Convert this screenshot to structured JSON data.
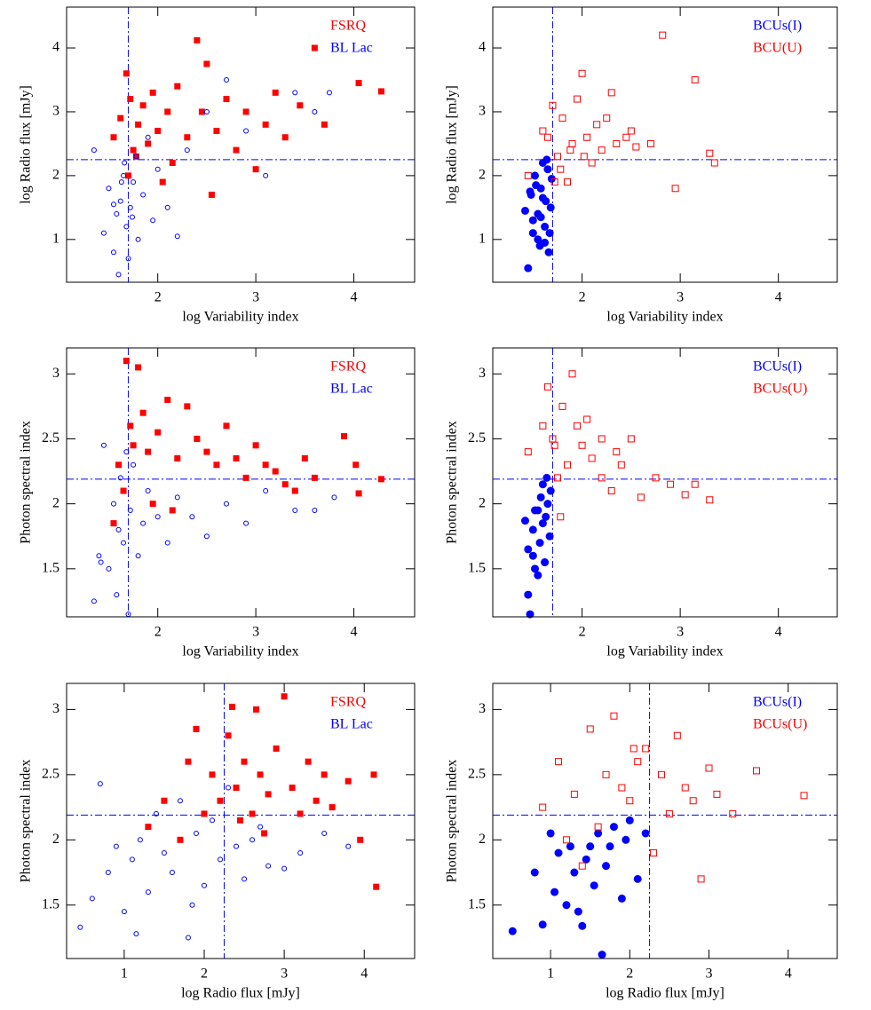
{
  "chart_data": [
    {
      "type": "scatter",
      "xlabel": "log Variability index",
      "ylabel": "log Radio flux [mJy]",
      "xlim": [
        1.07,
        4.62
      ],
      "ylim": [
        0.33,
        4.64
      ],
      "xticks": [
        2,
        3,
        4
      ],
      "yticks": [
        1,
        2,
        3,
        4
      ],
      "vline": 1.7,
      "hline": 2.25,
      "legend": "upper right",
      "series": [
        {
          "name": "FSRQ",
          "color": "#ff0000",
          "marker": "filled-square",
          "x": [
            1.55,
            1.62,
            1.68,
            1.72,
            1.75,
            1.8,
            1.85,
            1.9,
            1.95,
            2.0,
            2.05,
            2.1,
            2.2,
            2.3,
            2.4,
            2.45,
            2.5,
            2.6,
            2.7,
            2.8,
            2.9,
            3.0,
            3.1,
            3.2,
            3.3,
            3.45,
            3.6,
            3.7,
            4.05,
            4.28,
            1.7,
            1.78,
            2.15,
            2.55
          ],
          "values": [
            2.6,
            2.9,
            3.6,
            3.2,
            2.4,
            2.8,
            3.1,
            2.5,
            3.3,
            2.7,
            1.9,
            3.0,
            3.4,
            2.6,
            4.12,
            3.0,
            3.75,
            2.7,
            3.2,
            2.4,
            3.0,
            2.1,
            2.8,
            3.3,
            2.6,
            3.1,
            4.0,
            2.8,
            3.45,
            3.32,
            2.0,
            2.3,
            2.2,
            1.7
          ]
        },
        {
          "name": "BL Lac",
          "color": "#0000ff",
          "marker": "open-circle",
          "x": [
            1.35,
            1.45,
            1.5,
            1.55,
            1.58,
            1.6,
            1.62,
            1.65,
            1.68,
            1.7,
            1.72,
            1.75,
            1.78,
            1.8,
            1.85,
            1.9,
            1.95,
            2.0,
            2.1,
            2.2,
            2.3,
            2.5,
            2.7,
            2.9,
            3.1,
            3.4,
            3.6,
            3.75,
            1.63,
            1.66,
            1.74,
            1.55
          ],
          "values": [
            2.4,
            1.1,
            1.8,
            0.8,
            1.4,
            0.45,
            1.6,
            2.0,
            1.2,
            0.7,
            1.5,
            1.9,
            2.3,
            1.0,
            1.7,
            2.6,
            1.3,
            2.1,
            1.5,
            1.05,
            2.4,
            3.0,
            3.5,
            2.7,
            2.0,
            3.3,
            3.0,
            3.3,
            1.9,
            2.2,
            1.35,
            1.55
          ]
        }
      ]
    },
    {
      "type": "scatter",
      "xlabel": "log Variability index",
      "ylabel": "log Radio flux [mJy]",
      "xlim": [
        1.09,
        4.6
      ],
      "ylim": [
        0.33,
        4.64
      ],
      "xticks": [
        2,
        3,
        4
      ],
      "yticks": [
        1,
        2,
        3,
        4
      ],
      "vline": 1.7,
      "hline": 2.25,
      "legend": "upper right",
      "series": [
        {
          "name": "BCUs(I)",
          "color": "#0000ff",
          "marker": "filled-circle",
          "x": [
            1.42,
            1.45,
            1.48,
            1.5,
            1.52,
            1.55,
            1.57,
            1.58,
            1.6,
            1.62,
            1.63,
            1.65,
            1.66,
            1.68,
            1.69,
            1.5,
            1.55,
            1.6,
            1.64,
            1.67,
            1.47,
            1.53,
            1.58,
            1.62
          ],
          "values": [
            1.45,
            0.55,
            1.7,
            1.1,
            2.0,
            1.4,
            0.9,
            1.8,
            2.2,
            1.2,
            1.6,
            2.1,
            0.8,
            1.5,
            1.95,
            1.3,
            1.0,
            1.65,
            2.25,
            1.1,
            1.75,
            1.85,
            1.35,
            0.95
          ]
        },
        {
          "name": "BCU(U)",
          "color": "#ff0000",
          "marker": "open-square",
          "x": [
            1.45,
            1.6,
            1.7,
            1.75,
            1.8,
            1.85,
            1.9,
            1.95,
            2.0,
            2.05,
            2.1,
            2.15,
            2.2,
            2.3,
            2.35,
            2.45,
            2.5,
            2.55,
            2.7,
            2.82,
            2.95,
            3.15,
            3.3,
            3.35,
            1.72,
            1.78,
            1.88,
            2.02,
            2.25,
            1.65
          ],
          "values": [
            2.0,
            2.7,
            3.1,
            2.3,
            2.9,
            1.9,
            2.5,
            3.2,
            3.6,
            2.6,
            2.2,
            2.8,
            2.4,
            3.3,
            2.5,
            2.6,
            2.7,
            2.45,
            2.5,
            4.2,
            1.8,
            3.5,
            2.35,
            2.2,
            1.9,
            2.1,
            2.4,
            2.3,
            2.9,
            2.6
          ]
        }
      ]
    },
    {
      "type": "scatter",
      "xlabel": "log Variability index",
      "ylabel": "Photon spectral index",
      "xlim": [
        1.07,
        4.62
      ],
      "ylim": [
        1.13,
        3.2
      ],
      "xticks": [
        2,
        3,
        4
      ],
      "yticks": [
        1.5,
        2,
        2.5,
        3
      ],
      "vline": 1.7,
      "hline": 2.19,
      "legend": "upper right",
      "series": [
        {
          "name": "FSRQ",
          "color": "#ff0000",
          "marker": "filled-square",
          "x": [
            1.55,
            1.6,
            1.68,
            1.72,
            1.75,
            1.8,
            1.85,
            1.9,
            2.0,
            2.1,
            2.2,
            2.3,
            2.4,
            2.5,
            2.6,
            2.7,
            2.8,
            2.9,
            3.0,
            3.1,
            3.2,
            3.3,
            3.4,
            3.5,
            3.6,
            3.9,
            4.02,
            4.05,
            4.28,
            1.65,
            1.95,
            2.15
          ],
          "values": [
            1.85,
            2.3,
            3.1,
            2.6,
            2.45,
            3.05,
            2.7,
            2.4,
            2.55,
            2.8,
            2.35,
            2.75,
            2.5,
            2.4,
            2.3,
            2.6,
            2.35,
            2.2,
            2.45,
            2.3,
            2.25,
            2.15,
            2.1,
            2.35,
            2.2,
            2.52,
            2.3,
            2.08,
            2.19,
            2.1,
            2.0,
            1.95
          ]
        },
        {
          "name": "BL Lac",
          "color": "#0000ff",
          "marker": "open-circle",
          "x": [
            1.35,
            1.4,
            1.45,
            1.5,
            1.55,
            1.58,
            1.6,
            1.62,
            1.65,
            1.7,
            1.72,
            1.75,
            1.8,
            1.85,
            1.9,
            2.0,
            2.1,
            2.2,
            2.35,
            2.5,
            2.7,
            2.9,
            3.1,
            3.4,
            3.6,
            3.8,
            1.42,
            1.68
          ],
          "values": [
            1.25,
            1.6,
            2.45,
            1.5,
            2.0,
            1.3,
            1.8,
            2.2,
            1.7,
            1.15,
            1.95,
            2.3,
            1.6,
            1.85,
            2.1,
            1.9,
            1.7,
            2.05,
            1.9,
            1.75,
            2.0,
            1.85,
            2.1,
            1.95,
            1.95,
            2.05,
            1.55,
            2.4
          ]
        }
      ]
    },
    {
      "type": "scatter",
      "xlabel": "log Variability index",
      "ylabel": "Photon spectral index",
      "xlim": [
        1.09,
        4.6
      ],
      "ylim": [
        1.13,
        3.2
      ],
      "xticks": [
        2,
        3,
        4
      ],
      "yticks": [
        1.5,
        2,
        2.5,
        3
      ],
      "vline": 1.7,
      "hline": 2.19,
      "legend": "upper right",
      "series": [
        {
          "name": "BCUs(I)",
          "color": "#0000ff",
          "marker": "filled-circle",
          "x": [
            1.42,
            1.45,
            1.47,
            1.5,
            1.52,
            1.55,
            1.57,
            1.58,
            1.6,
            1.62,
            1.64,
            1.65,
            1.67,
            1.68,
            1.5,
            1.55,
            1.6,
            1.63,
            1.45,
            1.52
          ],
          "values": [
            1.87,
            1.3,
            1.15,
            1.6,
            1.95,
            1.45,
            1.7,
            2.05,
            1.85,
            1.55,
            2.2,
            2.0,
            1.75,
            2.1,
            1.8,
            1.95,
            2.15,
            1.9,
            1.65,
            1.5
          ]
        },
        {
          "name": "BCUs(U)",
          "color": "#ff0000",
          "marker": "open-square",
          "x": [
            1.45,
            1.6,
            1.65,
            1.7,
            1.75,
            1.8,
            1.85,
            1.9,
            2.0,
            2.05,
            2.1,
            2.2,
            2.3,
            2.4,
            2.5,
            2.6,
            2.75,
            2.9,
            3.05,
            3.15,
            3.3,
            1.72,
            1.78,
            1.95,
            2.2,
            2.35
          ],
          "values": [
            2.4,
            2.6,
            2.9,
            2.5,
            2.2,
            2.75,
            2.3,
            3.0,
            2.45,
            2.65,
            2.35,
            2.5,
            2.1,
            2.3,
            2.5,
            2.05,
            2.2,
            2.15,
            2.07,
            2.15,
            2.03,
            2.45,
            1.9,
            2.6,
            2.2,
            2.4
          ]
        }
      ]
    },
    {
      "type": "scatter",
      "xlabel": "log Radio flux [mJy]",
      "ylabel": "Photon spectral index",
      "xlim": [
        0.28,
        4.63
      ],
      "ylim": [
        1.09,
        3.2
      ],
      "xticks": [
        1,
        2,
        3,
        4
      ],
      "yticks": [
        1.5,
        2,
        2.5,
        3
      ],
      "vline": 2.25,
      "hline": 2.19,
      "legend": "upper right",
      "series": [
        {
          "name": "FSRQ",
          "color": "#ff0000",
          "marker": "filled-square",
          "x": [
            1.3,
            1.5,
            1.7,
            1.8,
            1.9,
            2.0,
            2.1,
            2.2,
            2.3,
            2.35,
            2.4,
            2.5,
            2.6,
            2.65,
            2.7,
            2.8,
            2.9,
            3.0,
            3.1,
            3.2,
            3.3,
            3.4,
            3.5,
            3.6,
            3.8,
            3.95,
            4.12,
            4.15,
            2.45,
            2.75
          ],
          "values": [
            2.1,
            2.3,
            2.0,
            2.6,
            2.85,
            2.2,
            2.5,
            2.3,
            2.8,
            3.02,
            2.4,
            2.6,
            2.2,
            3.0,
            2.5,
            2.35,
            2.7,
            3.1,
            2.4,
            2.2,
            2.6,
            2.3,
            2.5,
            2.25,
            2.45,
            2.0,
            2.5,
            1.64,
            2.15,
            2.05
          ]
        },
        {
          "name": "BL Lac",
          "color": "#0000ff",
          "marker": "open-circle",
          "x": [
            0.45,
            0.6,
            0.7,
            0.8,
            0.9,
            1.0,
            1.1,
            1.2,
            1.3,
            1.4,
            1.5,
            1.6,
            1.7,
            1.8,
            1.9,
            2.0,
            2.1,
            2.2,
            2.3,
            2.4,
            2.5,
            2.6,
            2.7,
            2.8,
            3.0,
            3.2,
            3.5,
            3.8,
            1.15,
            1.85
          ],
          "values": [
            1.33,
            1.55,
            2.43,
            1.75,
            1.95,
            1.45,
            1.85,
            2.0,
            1.6,
            2.2,
            1.9,
            1.75,
            2.3,
            1.25,
            2.05,
            1.65,
            2.15,
            1.85,
            2.4,
            1.95,
            1.7,
            2.0,
            2.1,
            1.8,
            1.78,
            1.9,
            2.05,
            1.95,
            1.28,
            1.5
          ]
        }
      ]
    },
    {
      "type": "scatter",
      "xlabel": "log Radio flux [mJy]",
      "ylabel": "Photon spectral index",
      "xlim": [
        0.27,
        4.62
      ],
      "ylim": [
        1.09,
        3.2
      ],
      "xticks": [
        1,
        2,
        3,
        4
      ],
      "yticks": [
        1.5,
        2,
        2.5,
        3
      ],
      "vline": 2.25,
      "hline": 2.19,
      "legend": "upper right",
      "series": [
        {
          "name": "BCUs(I)",
          "color": "#0000ff",
          "marker": "filled-circle",
          "x": [
            0.52,
            0.8,
            0.9,
            1.0,
            1.05,
            1.1,
            1.2,
            1.3,
            1.4,
            1.5,
            1.6,
            1.65,
            1.7,
            1.8,
            1.9,
            2.0,
            2.1,
            2.2,
            1.25,
            1.45,
            1.75,
            1.95,
            1.35,
            1.55
          ],
          "values": [
            1.3,
            1.75,
            1.35,
            2.05,
            1.6,
            1.9,
            1.5,
            1.75,
            1.34,
            1.95,
            2.05,
            1.12,
            1.8,
            2.1,
            1.55,
            2.15,
            1.7,
            2.05,
            1.95,
            1.85,
            1.95,
            2.0,
            1.45,
            1.65
          ]
        },
        {
          "name": "BCUs(U)",
          "color": "#ff0000",
          "marker": "open-square",
          "x": [
            0.9,
            1.1,
            1.2,
            1.3,
            1.5,
            1.6,
            1.7,
            1.8,
            1.9,
            2.0,
            2.1,
            2.2,
            2.3,
            2.4,
            2.5,
            2.6,
            2.7,
            2.8,
            2.9,
            3.0,
            3.1,
            3.3,
            3.6,
            4.2,
            1.4,
            2.05
          ],
          "values": [
            2.25,
            2.6,
            2.0,
            2.35,
            2.85,
            2.1,
            2.5,
            2.95,
            2.4,
            2.3,
            2.6,
            2.7,
            1.9,
            2.5,
            2.2,
            2.8,
            2.4,
            2.3,
            1.7,
            2.55,
            2.35,
            2.2,
            2.53,
            2.34,
            1.8,
            2.7
          ]
        }
      ]
    }
  ]
}
